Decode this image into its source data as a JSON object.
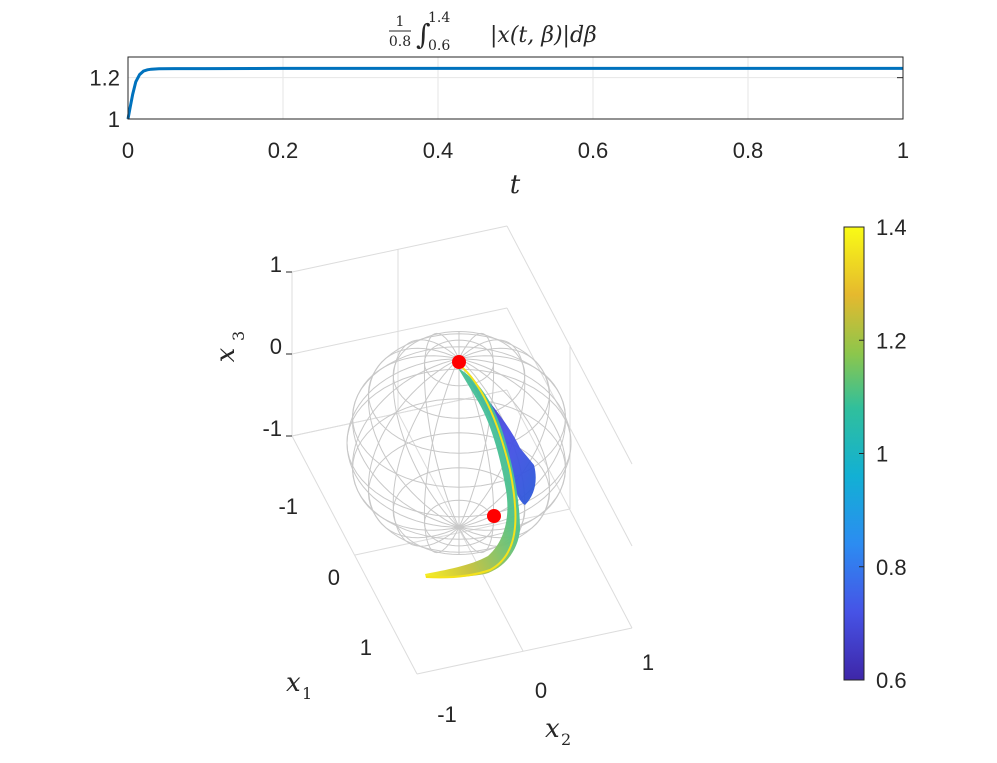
{
  "chart_data": [
    {
      "type": "line",
      "title_parts": {
        "frac_num": "1",
        "frac_den": "0.8",
        "integral": "∫",
        "upper": "1.4",
        "lower": "0.6",
        "body": "|x(t, β)|dβ"
      },
      "xlabel": "t",
      "ylabel": "",
      "xlim": [
        0,
        1
      ],
      "ylim": [
        1,
        1.3
      ],
      "xticks": [
        "0",
        "0.2",
        "0.4",
        "0.6",
        "0.8",
        "1"
      ],
      "yticks": [
        "1",
        "1.2"
      ],
      "grid": true,
      "series": [
        {
          "color": "#0072BD",
          "x": [
            0,
            0.003,
            0.006,
            0.01,
            0.015,
            0.02,
            0.025,
            0.03,
            0.04,
            0.06,
            0.1,
            0.2,
            0.4,
            0.6,
            0.8,
            1.0
          ],
          "y": [
            1.0,
            1.06,
            1.12,
            1.18,
            1.215,
            1.232,
            1.238,
            1.241,
            1.243,
            1.244,
            1.244,
            1.245,
            1.245,
            1.245,
            1.245,
            1.245
          ]
        }
      ]
    },
    {
      "type": "3d-surface",
      "xlabel": "x",
      "xlabel_sub": "1",
      "ylabel": "x",
      "ylabel_sub": "2",
      "zlabel": "x",
      "zlabel_sub": "3",
      "x1_ticks": [
        "-1",
        "0",
        "1"
      ],
      "x2_ticks": [
        "-1",
        "0",
        "1"
      ],
      "x3_ticks": [
        "1",
        "0",
        "-1"
      ],
      "colormap": "parula",
      "colorbar": {
        "range": [
          0.6,
          1.4
        ],
        "ticks": [
          "1.4",
          "1.2",
          "1",
          "0.8",
          "0.6"
        ],
        "placement": "right"
      },
      "unit_sphere_wireframe": true,
      "markers": [
        {
          "label": "start point",
          "color": "#ff0000"
        },
        {
          "label": "end point",
          "color": "#ff0000"
        }
      ]
    }
  ]
}
